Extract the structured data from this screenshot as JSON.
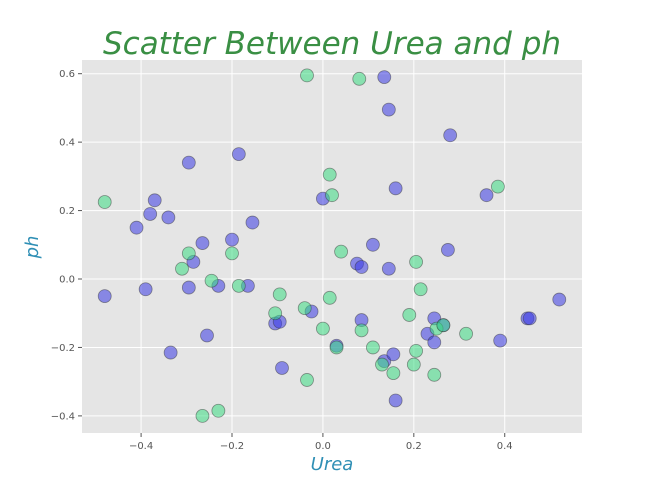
{
  "chart_data": {
    "type": "scatter",
    "title": "Scatter Between Urea and ph",
    "xlabel": "Urea",
    "ylabel": "ph",
    "xlim": [
      -0.53,
      0.57
    ],
    "ylim": [
      -0.45,
      0.64
    ],
    "grid": true,
    "xticks": [
      "−0.4",
      "−0.2",
      "0.0",
      "0.2",
      "0.4"
    ],
    "xtick_values": [
      -0.4,
      -0.2,
      0.0,
      0.2,
      0.4
    ],
    "yticks": [
      "−0.4",
      "−0.2",
      "0.0",
      "0.2",
      "0.4",
      "0.6"
    ],
    "ytick_values": [
      -0.4,
      -0.2,
      0.0,
      0.2,
      0.4,
      0.6
    ],
    "colors": {
      "title": "#3a8f44",
      "axis_label": "#2f8fb5",
      "plot_background": "#e5e5e5",
      "grid": "#ffffff"
    },
    "series": [
      {
        "color": "#3b3be3",
        "points": [
          [
            -0.48,
            -0.05
          ],
          [
            -0.41,
            0.15
          ],
          [
            -0.39,
            -0.03
          ],
          [
            -0.38,
            0.19
          ],
          [
            -0.37,
            0.23
          ],
          [
            -0.34,
            0.18
          ],
          [
            -0.335,
            -0.215
          ],
          [
            -0.295,
            0.34
          ],
          [
            -0.295,
            -0.025
          ],
          [
            -0.285,
            0.05
          ],
          [
            -0.265,
            0.105
          ],
          [
            -0.255,
            -0.165
          ],
          [
            -0.23,
            -0.02
          ],
          [
            -0.2,
            0.115
          ],
          [
            -0.185,
            0.365
          ],
          [
            -0.165,
            -0.02
          ],
          [
            -0.155,
            0.165
          ],
          [
            -0.105,
            -0.13
          ],
          [
            -0.095,
            -0.125
          ],
          [
            -0.09,
            -0.26
          ],
          [
            -0.025,
            -0.095
          ],
          [
            0.0,
            0.235
          ],
          [
            0.03,
            -0.195
          ],
          [
            0.075,
            0.045
          ],
          [
            0.085,
            0.035
          ],
          [
            0.085,
            -0.12
          ],
          [
            0.11,
            0.1
          ],
          [
            0.135,
            0.59
          ],
          [
            0.135,
            -0.24
          ],
          [
            0.145,
            0.495
          ],
          [
            0.145,
            0.03
          ],
          [
            0.155,
            -0.22
          ],
          [
            0.16,
            0.265
          ],
          [
            0.16,
            -0.355
          ],
          [
            0.23,
            -0.16
          ],
          [
            0.245,
            -0.115
          ],
          [
            0.245,
            -0.185
          ],
          [
            0.265,
            -0.135
          ],
          [
            0.275,
            0.085
          ],
          [
            0.28,
            0.42
          ],
          [
            0.36,
            0.245
          ],
          [
            0.39,
            -0.18
          ],
          [
            0.45,
            -0.115
          ],
          [
            0.455,
            -0.115
          ],
          [
            0.52,
            -0.06
          ]
        ]
      },
      {
        "color": "#3ddc84",
        "points": [
          [
            -0.48,
            0.225
          ],
          [
            -0.31,
            0.03
          ],
          [
            -0.295,
            0.075
          ],
          [
            -0.265,
            -0.4
          ],
          [
            -0.245,
            -0.005
          ],
          [
            -0.23,
            -0.385
          ],
          [
            -0.2,
            0.075
          ],
          [
            -0.185,
            -0.02
          ],
          [
            -0.105,
            -0.1
          ],
          [
            -0.095,
            -0.045
          ],
          [
            -0.04,
            -0.085
          ],
          [
            -0.035,
            -0.295
          ],
          [
            -0.035,
            0.595
          ],
          [
            0.0,
            -0.145
          ],
          [
            0.015,
            -0.055
          ],
          [
            0.015,
            0.305
          ],
          [
            0.02,
            0.245
          ],
          [
            0.03,
            -0.2
          ],
          [
            0.04,
            0.08
          ],
          [
            0.08,
            0.585
          ],
          [
            0.085,
            -0.15
          ],
          [
            0.11,
            -0.2
          ],
          [
            0.13,
            -0.25
          ],
          [
            0.155,
            -0.275
          ],
          [
            0.19,
            -0.105
          ],
          [
            0.2,
            -0.25
          ],
          [
            0.205,
            0.05
          ],
          [
            0.205,
            -0.21
          ],
          [
            0.215,
            -0.03
          ],
          [
            0.245,
            -0.28
          ],
          [
            0.25,
            -0.145
          ],
          [
            0.265,
            -0.135
          ],
          [
            0.315,
            -0.16
          ],
          [
            0.385,
            0.27
          ]
        ]
      }
    ]
  }
}
